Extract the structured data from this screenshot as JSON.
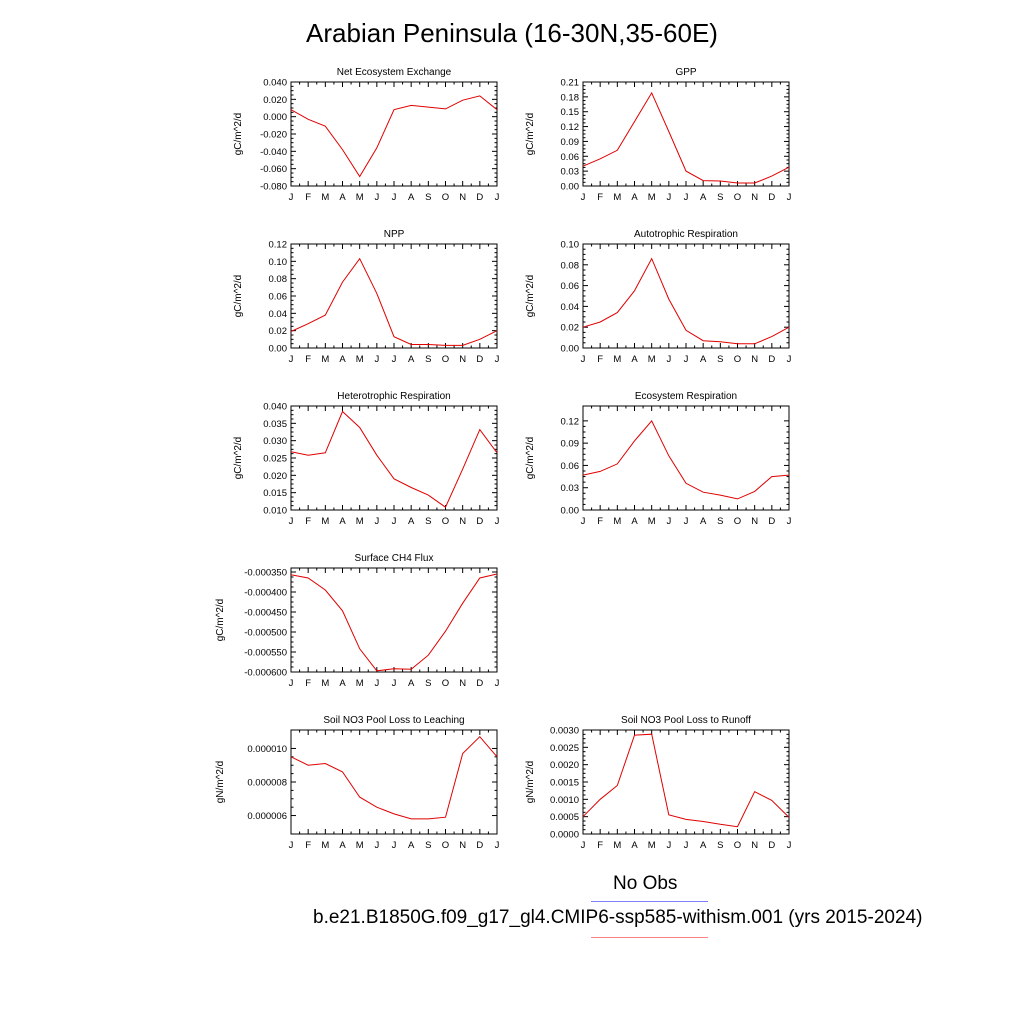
{
  "title": "Arabian Peninsula (16-30N,35-60E)",
  "months": [
    "J",
    "F",
    "M",
    "A",
    "M",
    "J",
    "J",
    "A",
    "S",
    "O",
    "N",
    "D",
    "J"
  ],
  "chart_data": [
    {
      "type": "line",
      "title": "Net Ecosystem Exchange",
      "ylabel": "gC/m^2/d",
      "ylim": [
        -0.08,
        0.04
      ],
      "yticks": [
        "0.040",
        "0.020",
        "0.000",
        "-0.020",
        "-0.040",
        "-0.060",
        "-0.080"
      ],
      "yticks_values": [
        0.04,
        0.02,
        0.0,
        -0.02,
        -0.04,
        -0.06,
        -0.08
      ],
      "series": [
        {
          "color": "#e00000",
          "values": [
            0.008,
            -0.003,
            -0.011,
            -0.038,
            -0.069,
            -0.036,
            0.008,
            0.013,
            0.011,
            0.009,
            0.019,
            0.024,
            0.008
          ]
        }
      ]
    },
    {
      "type": "line",
      "title": "GPP",
      "ylabel": "gC/m^2/d",
      "ylim": [
        0,
        0.21
      ],
      "yticks": [
        "0.21",
        "0.18",
        "0.15",
        "0.12",
        "0.09",
        "0.06",
        "0.03",
        "0.00"
      ],
      "yticks_values": [
        0.21,
        0.18,
        0.15,
        0.12,
        0.09,
        0.06,
        0.03,
        0.0
      ],
      "series": [
        {
          "color": "#e00000",
          "values": [
            0.04,
            0.055,
            0.072,
            0.13,
            0.188,
            0.11,
            0.03,
            0.011,
            0.01,
            0.006,
            0.006,
            0.02,
            0.038
          ]
        }
      ]
    },
    {
      "type": "line",
      "title": "NPP",
      "ylabel": "gC/m^2/d",
      "ylim": [
        0,
        0.12
      ],
      "yticks": [
        "0.12",
        "0.10",
        "0.08",
        "0.06",
        "0.04",
        "0.02",
        "0.00"
      ],
      "yticks_values": [
        0.12,
        0.1,
        0.08,
        0.06,
        0.04,
        0.02,
        0.0
      ],
      "series": [
        {
          "color": "#e00000",
          "values": [
            0.019,
            0.028,
            0.038,
            0.076,
            0.103,
            0.063,
            0.013,
            0.004,
            0.004,
            0.003,
            0.003,
            0.01,
            0.02
          ]
        }
      ]
    },
    {
      "type": "line",
      "title": "Autotrophic Respiration",
      "ylabel": "gC/m^2/d",
      "ylim": [
        0,
        0.1
      ],
      "yticks": [
        "0.10",
        "0.08",
        "0.06",
        "0.04",
        "0.02",
        "0.00"
      ],
      "yticks_values": [
        0.1,
        0.08,
        0.06,
        0.04,
        0.02,
        0.0
      ],
      "series": [
        {
          "color": "#e00000",
          "values": [
            0.02,
            0.025,
            0.034,
            0.055,
            0.086,
            0.047,
            0.017,
            0.007,
            0.006,
            0.004,
            0.004,
            0.011,
            0.02
          ]
        }
      ]
    },
    {
      "type": "line",
      "title": "Heterotrophic Respiration",
      "ylabel": "gC/m^2/d",
      "ylim": [
        0.01,
        0.04
      ],
      "yticks": [
        "0.040",
        "0.035",
        "0.030",
        "0.025",
        "0.020",
        "0.015",
        "0.010"
      ],
      "yticks_values": [
        0.04,
        0.035,
        0.03,
        0.025,
        0.02,
        0.015,
        0.01
      ],
      "series": [
        {
          "color": "#e00000",
          "values": [
            0.0268,
            0.0258,
            0.0265,
            0.0384,
            0.0338,
            0.0258,
            0.019,
            0.0165,
            0.0143,
            0.0108,
            0.0218,
            0.0332,
            0.0265
          ]
        }
      ]
    },
    {
      "type": "line",
      "title": "Ecosystem Respiration",
      "ylabel": "gC/m^2/d",
      "ylim": [
        0,
        0.14
      ],
      "yticks": [
        "0.12",
        "0.09",
        "0.06",
        "0.03",
        "0.00"
      ],
      "yticks_values": [
        0.12,
        0.09,
        0.06,
        0.03,
        0.0
      ],
      "series": [
        {
          "color": "#e00000",
          "values": [
            0.047,
            0.052,
            0.062,
            0.093,
            0.12,
            0.073,
            0.036,
            0.024,
            0.02,
            0.015,
            0.025,
            0.045,
            0.047
          ]
        }
      ]
    },
    {
      "type": "line",
      "title": "Surface CH4 Flux",
      "ylabel": "gC/m^2/d",
      "ylim": [
        -0.0006,
        -0.00034
      ],
      "yticks": [
        "-0.000350",
        "-0.000400",
        "-0.000450",
        "-0.000500",
        "-0.000550",
        "-0.000600"
      ],
      "yticks_values": [
        -0.00035,
        -0.0004,
        -0.00045,
        -0.0005,
        -0.00055,
        -0.0006
      ],
      "series": [
        {
          "color": "#e00000",
          "values": [
            -0.000357,
            -0.000365,
            -0.000395,
            -0.000447,
            -0.000542,
            -0.000597,
            -0.000592,
            -0.000593,
            -0.000558,
            -0.000498,
            -0.000428,
            -0.000365,
            -0.000355
          ]
        }
      ]
    },
    {
      "type": "line",
      "title": "Soil NO3 Pool Loss to Leaching",
      "ylabel": "gN/m^2/d",
      "ylim": [
        4.9e-06,
        1.11e-05
      ],
      "yticks": [
        "0.000010",
        "0.000008",
        "0.000006"
      ],
      "yticks_values": [
        1e-05,
        8e-06,
        6e-06
      ],
      "series": [
        {
          "color": "#e00000",
          "values": [
            9.5e-06,
            9e-06,
            9.1e-06,
            8.6e-06,
            7.1e-06,
            6.5e-06,
            6.1e-06,
            5.8e-06,
            5.8e-06,
            5.9e-06,
            9.7e-06,
            1.07e-05,
            9.5e-06
          ]
        }
      ]
    },
    {
      "type": "line",
      "title": "Soil NO3 Pool Loss to Runoff",
      "ylabel": "gN/m^2/d",
      "ylim": [
        0,
        0.003
      ],
      "yticks": [
        "0.0030",
        "0.0025",
        "0.0020",
        "0.0015",
        "0.0010",
        "0.0005",
        "0.0000"
      ],
      "yticks_values": [
        0.003,
        0.0025,
        0.002,
        0.0015,
        0.001,
        0.0005,
        0.0
      ],
      "series": [
        {
          "color": "#e00000",
          "values": [
            0.0005,
            0.001,
            0.0014,
            0.00285,
            0.00288,
            0.00055,
            0.00042,
            0.00036,
            0.00028,
            0.00021,
            0.00122,
            0.00097,
            0.00048
          ]
        }
      ]
    }
  ],
  "legend": {
    "obs_label": "No Obs",
    "obs_color": "#8080ff",
    "model_label": "b.e21.B1850G.f09_g17_gl4.CMIP6-ssp585-withism.001 (yrs 2015-2024)",
    "model_color": "#ff8080"
  }
}
